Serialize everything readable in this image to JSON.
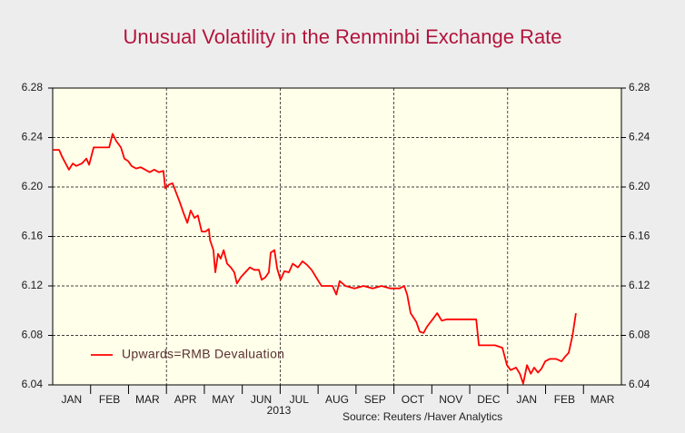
{
  "chart_data": {
    "type": "line",
    "title": "Unusual Volatility in the Renminbi Exchange Rate",
    "annotations": [
      "2013",
      "Source:  Reuters /Haver Analytics"
    ],
    "x": [
      0.0,
      0.17,
      0.24,
      0.36,
      0.43,
      0.53,
      0.62,
      0.77,
      0.89,
      0.96,
      1.08,
      1.25,
      1.49,
      1.58,
      1.68,
      1.8,
      1.89,
      1.99,
      2.08,
      2.2,
      2.32,
      2.44,
      2.56,
      2.68,
      2.8,
      2.92,
      2.97,
      3.07,
      3.16,
      3.26,
      3.35,
      3.45,
      3.55,
      3.64,
      3.74,
      3.83,
      3.93,
      4.03,
      4.12,
      4.15,
      4.24,
      4.29,
      4.36,
      4.43,
      4.51,
      4.6,
      4.7,
      4.79,
      4.86,
      4.96,
      5.08,
      5.2,
      5.32,
      5.44,
      5.51,
      5.61,
      5.7,
      5.75,
      5.85,
      5.92,
      6.01,
      6.11,
      6.23,
      6.33,
      6.47,
      6.59,
      6.71,
      6.83,
      6.95,
      7.09,
      7.24,
      7.38,
      7.48,
      7.57,
      7.72,
      7.96,
      8.2,
      8.44,
      8.67,
      8.91,
      9.15,
      9.27,
      9.35,
      9.44,
      9.59,
      9.68,
      9.78,
      9.87,
      10.02,
      10.14,
      10.26,
      10.4,
      10.59,
      10.83,
      11.07,
      11.17,
      11.24,
      11.43,
      11.67,
      11.86,
      11.98,
      12.08,
      12.22,
      12.32,
      12.41,
      12.51,
      12.61,
      12.7,
      12.8,
      12.89,
      12.99,
      13.11,
      13.28,
      13.42,
      13.52,
      13.61,
      13.71,
      13.8
    ],
    "series": [
      {
        "name": "Upwards=RMB Devaluation",
        "color": "#ff0000",
        "values": [
          6.23,
          6.23,
          6.225,
          6.218,
          6.214,
          6.219,
          6.217,
          6.219,
          6.223,
          6.218,
          6.232,
          6.232,
          6.232,
          6.243,
          6.237,
          6.232,
          6.223,
          6.221,
          6.217,
          6.215,
          6.216,
          6.214,
          6.212,
          6.214,
          6.212,
          6.213,
          6.199,
          6.202,
          6.203,
          6.195,
          6.188,
          6.179,
          6.171,
          6.181,
          6.175,
          6.177,
          6.164,
          6.164,
          6.166,
          6.157,
          6.149,
          6.131,
          6.146,
          6.142,
          6.149,
          6.138,
          6.135,
          6.131,
          6.122,
          6.127,
          6.131,
          6.135,
          6.133,
          6.133,
          6.125,
          6.127,
          6.131,
          6.147,
          6.149,
          6.134,
          6.125,
          6.132,
          6.131,
          6.138,
          6.135,
          6.14,
          6.137,
          6.133,
          6.127,
          6.12,
          6.12,
          6.12,
          6.113,
          6.124,
          6.12,
          6.118,
          6.12,
          6.118,
          6.12,
          6.118,
          6.118,
          6.12,
          6.113,
          6.098,
          6.091,
          6.083,
          6.082,
          6.087,
          6.093,
          6.098,
          6.092,
          6.093,
          6.093,
          6.093,
          6.093,
          6.093,
          6.072,
          6.072,
          6.072,
          6.07,
          6.056,
          6.052,
          6.054,
          6.049,
          6.041,
          6.056,
          6.049,
          6.054,
          6.05,
          6.053,
          6.059,
          6.061,
          6.061,
          6.059,
          6.063,
          6.066,
          6.08,
          6.098
        ]
      }
    ],
    "xlim": [
      0,
      15
    ],
    "xticks": [
      {
        "value": 0.5,
        "label": "JAN"
      },
      {
        "value": 1.5,
        "label": "FEB"
      },
      {
        "value": 2.5,
        "label": "MAR"
      },
      {
        "value": 3.5,
        "label": "APR"
      },
      {
        "value": 4.5,
        "label": "MAY"
      },
      {
        "value": 5.5,
        "label": "JUN"
      },
      {
        "value": 6.5,
        "label": "JUL"
      },
      {
        "value": 7.5,
        "label": "AUG"
      },
      {
        "value": 8.5,
        "label": "SEP"
      },
      {
        "value": 9.5,
        "label": "OCT"
      },
      {
        "value": 10.5,
        "label": "NOV"
      },
      {
        "value": 11.5,
        "label": "DEC"
      },
      {
        "value": 12.5,
        "label": "JAN"
      },
      {
        "value": 13.5,
        "label": "FEB"
      },
      {
        "value": 14.5,
        "label": "MAR"
      }
    ],
    "ylim": [
      6.04,
      6.28
    ],
    "yticks": [
      6.04,
      6.08,
      6.12,
      6.16,
      {
        "value": 6.2,
        "label": "6.20"
      },
      6.24,
      6.28
    ],
    "grid": true,
    "legend": "lower left"
  }
}
